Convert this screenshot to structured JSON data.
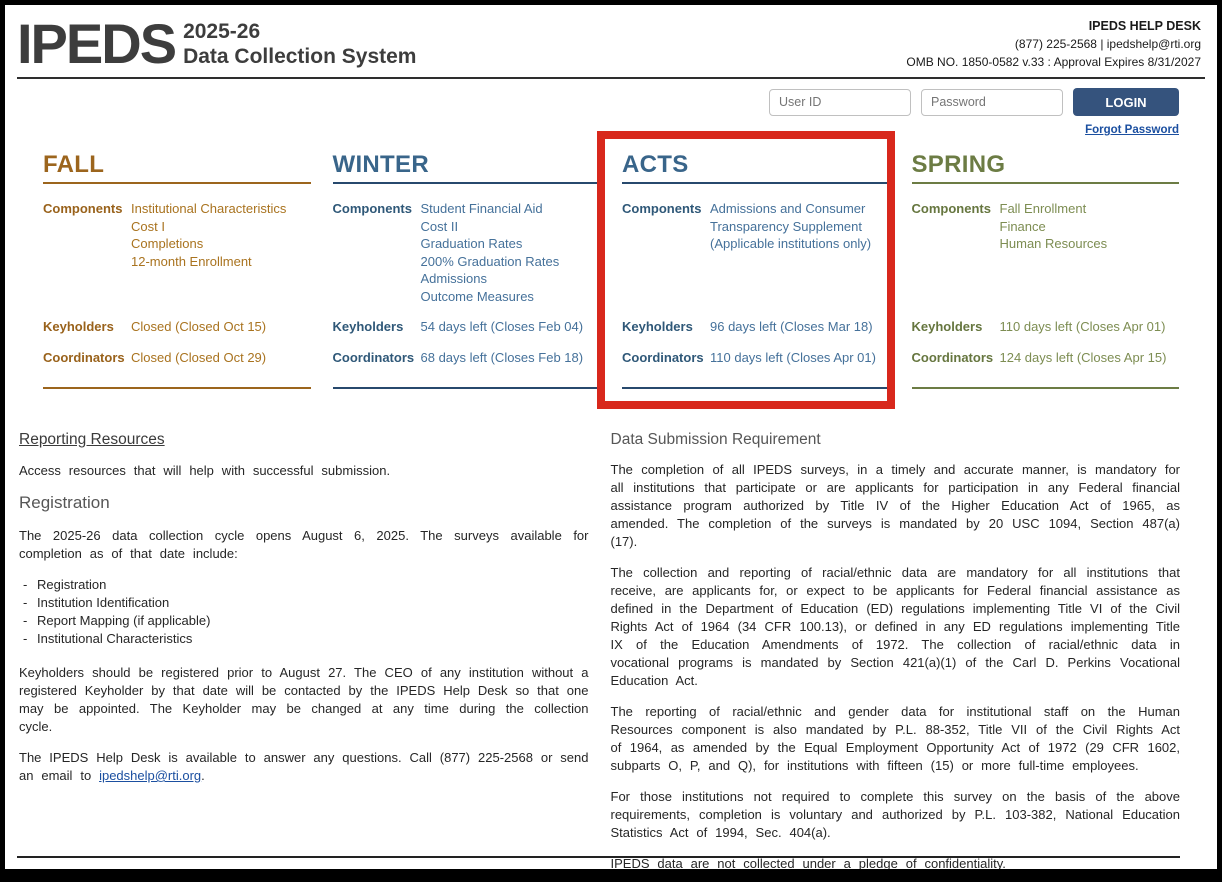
{
  "header": {
    "logo": "IPEDS",
    "cycle": "2025-26",
    "system_name": "Data Collection System",
    "help_desk": {
      "title": "IPEDS HELP DESK",
      "contact": "(877) 225-2568 | ipedshelp@rti.org",
      "omb": "OMB NO. 1850-0582 v.33 : Approval Expires 8/31/2027"
    }
  },
  "login": {
    "user_id_placeholder": "User ID",
    "password_placeholder": "Password",
    "login_label": "LOGIN",
    "button_color": "#35537d",
    "forgot_password": "Forgot Password",
    "forgot_password_color": "#1b4fa0"
  },
  "labels": {
    "components": "Components",
    "keyholders": "Keyholders",
    "coordinators": "Coordinators"
  },
  "seasons": [
    {
      "name": "FALL",
      "title_color": "#9c651d",
      "label_color": "#99621b",
      "value_color": "#a9731f",
      "line_color": "#9c651d",
      "components": [
        "Institutional Characteristics",
        "Cost I",
        "Completions",
        "12-month Enrollment"
      ],
      "keyholders": "Closed (Closed Oct 15)",
      "coordinators": "Closed (Closed Oct 29)"
    },
    {
      "name": "WINTER",
      "title_color": "#39658a",
      "label_color": "#2f5878",
      "value_color": "#45719a",
      "line_color": "#27496d",
      "components": [
        "Student Financial Aid",
        "Cost II",
        "Graduation Rates",
        "200% Graduation Rates",
        "Admissions",
        "Outcome Measures"
      ],
      "keyholders": "54 days left (Closes Feb 04)",
      "coordinators": "68 days left (Closes Feb 18)"
    },
    {
      "name": "ACTS",
      "title_color": "#39658a",
      "label_color": "#2f5878",
      "value_color": "#45719a",
      "line_color": "#27496d",
      "components": [
        "Admissions and Consumer Transparency Supplement (Applicable institutions only)"
      ],
      "keyholders": "96 days left (Closes Mar 18)",
      "coordinators": "110 days left (Closes Apr 01)"
    },
    {
      "name": "SPRING",
      "title_color": "#6c7c44",
      "label_color": "#66763f",
      "value_color": "#7d8d52",
      "line_color": "#6c7c44",
      "components": [
        "Fall Enrollment",
        "Finance",
        "Human Resources"
      ],
      "keyholders": "110 days left (Closes Apr 01)",
      "coordinators": "124 days left (Closes Apr 15)"
    }
  ],
  "highlight": {
    "target": "ACTS",
    "color": "#d8281c"
  },
  "left": {
    "reporting_resources": "Reporting Resources",
    "reporting_desc": "Access resources that will help with successful submission.",
    "registration_heading": "Registration",
    "registration_intro": "The 2025-26 data collection cycle opens August 6, 2025. The surveys available for completion as of that date include:",
    "registration_items": [
      "Registration",
      "Institution Identification",
      "Report Mapping (if applicable)",
      "Institutional Characteristics"
    ],
    "keyholder_note": "Keyholders should be registered prior to August 27. The CEO of any institution without a registered Keyholder by that date will be contacted by the IPEDS Help Desk so that one may be appointed. The Keyholder may be changed at any time during the collection cycle.",
    "helpdesk_note_before": "The IPEDS Help Desk is available to answer any questions. Call (877) 225-2568 or send an email to ",
    "helpdesk_email": "ipedshelp@rti.org",
    "helpdesk_note_after": ".",
    "email_link_color": "#1b4fa0"
  },
  "right": {
    "heading": "Data Submission Requirement",
    "paragraphs": [
      "The completion of all IPEDS surveys, in a timely and accurate manner, is mandatory for all institutions that participate or are applicants for participation in any Federal financial assistance program authorized by Title IV of the Higher Education Act of 1965, as amended. The completion of the surveys is mandated by 20 USC 1094, Section 487(a)(17).",
      "The collection and reporting of racial/ethnic data are mandatory for all institutions that receive, are applicants for, or expect to be applicants for Federal financial assistance as defined in the Department of Education (ED) regulations implementing Title VI of the Civil Rights Act of 1964 (34 CFR 100.13), or defined in any ED regulations implementing Title IX of the Education Amendments of 1972. The collection of racial/ethnic data in vocational programs is mandated by Section 421(a)(1) of the Carl D. Perkins Vocational Education Act.",
      "The reporting of racial/ethnic and gender data for institutional staff on the Human Resources component is also mandated by P.L. 88-352, Title VII of the Civil Rights Act of 1964, as amended by the Equal Employment Opportunity Act of 1972 (29 CFR 1602, subparts O, P, and Q), for institutions with fifteen (15) or more full-time employees.",
      "For those institutions not required to complete this survey on the basis of the above requirements, completion is voluntary and authorized by P.L. 103-382, National Education Statistics Act of 1994, Sec. 404(a).",
      "IPEDS data are not collected under a pledge of confidentiality."
    ]
  }
}
